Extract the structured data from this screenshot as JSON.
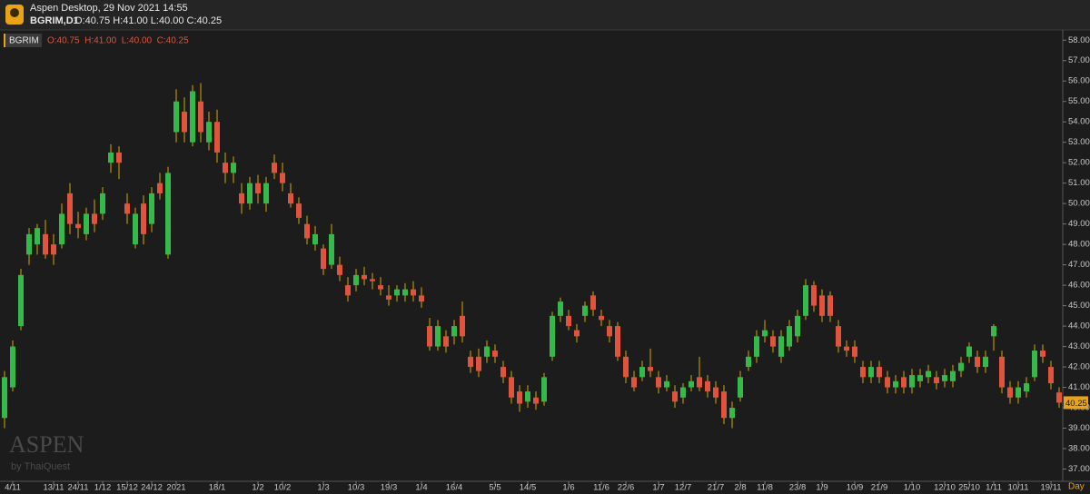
{
  "header": {
    "app": "Aspen Desktop, 29 Nov 2021 14:55",
    "symbol": "BGRIM,D1",
    "ohlc": "O:40.75 H:41.00 L:40.00 C:40.25"
  },
  "watermark": {
    "brand": "ASPEN",
    "by": "by ThaiQuest"
  },
  "chart_data": {
    "type": "candlestick",
    "name": "BGRIM",
    "legend_ohlc": "O:40.75  H:41.00  L:40.00  C:40.25",
    "x_unit": "Day",
    "up_color": "#35b94a",
    "down_color": "#e0533d",
    "wick_color": "#d4a900",
    "categories": [
      null,
      "4/11",
      null,
      null,
      null,
      null,
      "13/11",
      null,
      null,
      "24/11",
      null,
      null,
      "1/12",
      null,
      null,
      "15/12",
      null,
      null,
      "24/12",
      null,
      null,
      "2021",
      null,
      null,
      null,
      null,
      "18/1",
      null,
      null,
      null,
      null,
      "1/2",
      null,
      null,
      "10/2",
      null,
      null,
      null,
      null,
      "1/3",
      null,
      null,
      null,
      "10/3",
      null,
      null,
      null,
      "19/3",
      null,
      null,
      null,
      "1/4",
      null,
      null,
      null,
      "16/4",
      null,
      null,
      null,
      null,
      "5/5",
      null,
      null,
      null,
      "14/5",
      null,
      null,
      null,
      null,
      "1/6",
      null,
      null,
      null,
      "11/6",
      null,
      null,
      "22/6",
      null,
      null,
      null,
      "1/7",
      null,
      null,
      "12/7",
      null,
      null,
      null,
      "21/7",
      null,
      null,
      "2/8",
      null,
      null,
      "11/8",
      null,
      null,
      null,
      "23/8",
      null,
      null,
      "1/9",
      null,
      null,
      null,
      "10/9",
      null,
      null,
      "21/9",
      null,
      null,
      null,
      "1/10",
      null,
      null,
      null,
      "12/10",
      null,
      null,
      "25/10",
      null,
      null,
      "1/11",
      null,
      null,
      "10/11",
      null,
      null,
      null,
      "19/11",
      null
    ],
    "ohlc": [
      [
        39.5,
        41.8,
        39,
        41.5
      ],
      [
        41,
        43.3,
        40.8,
        43
      ],
      [
        44,
        46.8,
        43.8,
        46.5
      ],
      [
        47.5,
        48.8,
        47,
        48.5
      ],
      [
        48,
        49,
        47.5,
        48.8
      ],
      [
        48.5,
        49.2,
        47.3,
        47.5
      ],
      [
        48,
        48.5,
        47,
        47.5
      ],
      [
        48,
        50,
        47.8,
        49.5
      ],
      [
        50.5,
        51,
        48.5,
        49
      ],
      [
        49,
        49.6,
        48.3,
        48.8
      ],
      [
        48.5,
        49.8,
        48.2,
        49.5
      ],
      [
        49.5,
        50.2,
        48.6,
        49
      ],
      [
        49.5,
        50.8,
        49.2,
        50.5
      ],
      [
        52,
        52.9,
        51.5,
        52.5
      ],
      [
        52.5,
        52.8,
        51.2,
        52
      ],
      [
        50,
        50.5,
        49,
        49.5
      ],
      [
        48,
        49.8,
        47.8,
        49.5
      ],
      [
        50,
        50.4,
        48,
        48.5
      ],
      [
        49,
        50.8,
        48.6,
        50.5
      ],
      [
        51,
        51.5,
        50.2,
        50.5
      ],
      [
        47.5,
        51.8,
        47.3,
        51.5
      ],
      [
        53.5,
        55.6,
        53,
        55
      ],
      [
        54.5,
        55.2,
        53,
        53.5
      ],
      [
        53,
        55.8,
        52.8,
        55.5
      ],
      [
        55,
        55.9,
        53,
        53.5
      ],
      [
        53,
        54.5,
        52.6,
        54
      ],
      [
        54,
        54.6,
        52,
        52.5
      ],
      [
        52,
        52.5,
        51,
        51.5
      ],
      [
        51.5,
        52.3,
        51,
        52
      ],
      [
        50.5,
        51,
        49.5,
        50
      ],
      [
        50,
        51.3,
        49.7,
        51
      ],
      [
        51,
        51.4,
        50,
        50.5
      ],
      [
        50,
        51.3,
        49.6,
        51
      ],
      [
        52,
        52.4,
        51.2,
        51.5
      ],
      [
        51.5,
        52,
        50.6,
        51
      ],
      [
        50.5,
        51,
        49.8,
        50
      ],
      [
        50,
        50.3,
        49,
        49.3
      ],
      [
        49,
        49.4,
        48,
        48.3
      ],
      [
        48,
        48.9,
        47.7,
        48.5
      ],
      [
        47.8,
        48,
        46.5,
        46.8
      ],
      [
        47,
        49,
        46.8,
        48.5
      ],
      [
        47,
        47.4,
        46.2,
        46.5
      ],
      [
        46,
        46.4,
        45.2,
        45.5
      ],
      [
        46,
        46.8,
        45.7,
        46.5
      ],
      [
        46.5,
        46.9,
        46,
        46.3
      ],
      [
        46.3,
        46.6,
        45.8,
        46.2
      ],
      [
        46,
        46.4,
        45.5,
        45.8
      ],
      [
        45.5,
        46,
        45,
        45.3
      ],
      [
        45.5,
        46,
        45.2,
        45.8
      ],
      [
        45.5,
        46.1,
        45.2,
        45.8
      ],
      [
        45.8,
        46.2,
        45.2,
        45.5
      ],
      [
        45.5,
        45.9,
        44.9,
        45.2
      ],
      [
        44,
        44.4,
        42.8,
        43
      ],
      [
        43,
        44.3,
        42.8,
        44
      ],
      [
        43.5,
        43.8,
        42.7,
        43
      ],
      [
        43.5,
        44.3,
        43.1,
        44
      ],
      [
        44.5,
        45.2,
        43.2,
        43.5
      ],
      [
        42.5,
        42.8,
        41.7,
        42
      ],
      [
        42.5,
        42.9,
        41.5,
        41.8
      ],
      [
        42.5,
        43.3,
        42.2,
        43
      ],
      [
        42.8,
        43.1,
        42.2,
        42.5
      ],
      [
        42,
        42.3,
        41.2,
        41.5
      ],
      [
        41.5,
        41.8,
        40.2,
        40.5
      ],
      [
        40.8,
        41.1,
        39.8,
        40.2
      ],
      [
        40.3,
        41.1,
        40,
        40.8
      ],
      [
        40.5,
        40.8,
        39.9,
        40.2
      ],
      [
        40.3,
        41.7,
        40.1,
        41.5
      ],
      [
        42.5,
        44.7,
        42.3,
        44.5
      ],
      [
        44.5,
        45.4,
        44.2,
        45.2
      ],
      [
        44.5,
        44.8,
        43.8,
        44
      ],
      [
        43.8,
        44.1,
        43.2,
        43.5
      ],
      [
        44.5,
        45.2,
        44.2,
        45
      ],
      [
        45.5,
        45.7,
        44.5,
        44.8
      ],
      [
        44.5,
        44.8,
        44,
        44.3
      ],
      [
        44,
        44.3,
        43.2,
        43.5
      ],
      [
        44,
        44.2,
        42.3,
        42.5
      ],
      [
        42.5,
        42.8,
        41.2,
        41.5
      ],
      [
        41.5,
        41.8,
        40.8,
        41
      ],
      [
        41.5,
        42.3,
        41.3,
        42
      ],
      [
        42,
        42.9,
        41.5,
        41.8
      ],
      [
        41.5,
        41.8,
        40.7,
        41
      ],
      [
        41,
        41.6,
        40.8,
        41.3
      ],
      [
        40.8,
        41.1,
        40,
        40.3
      ],
      [
        40.5,
        41.2,
        40.2,
        41
      ],
      [
        41,
        41.6,
        40.8,
        41.3
      ],
      [
        41.5,
        42.5,
        40.8,
        41
      ],
      [
        41.3,
        41.6,
        40.5,
        40.8
      ],
      [
        41,
        41.3,
        40.2,
        40.5
      ],
      [
        40.8,
        41.1,
        39.2,
        39.5
      ],
      [
        39.5,
        40.3,
        39,
        40
      ],
      [
        40.5,
        41.8,
        40.3,
        41.5
      ],
      [
        42,
        42.8,
        41.8,
        42.5
      ],
      [
        42.5,
        43.8,
        42.2,
        43.5
      ],
      [
        43.5,
        44.3,
        43.2,
        43.8
      ],
      [
        43.5,
        43.8,
        42.7,
        43
      ],
      [
        42.5,
        43.8,
        42.2,
        43.5
      ],
      [
        43,
        44.3,
        42.8,
        44
      ],
      [
        43.5,
        44.8,
        43.2,
        44.5
      ],
      [
        44.5,
        46.3,
        44.3,
        46
      ],
      [
        46,
        46.2,
        44.7,
        45
      ],
      [
        45.5,
        45.8,
        44.2,
        44.5
      ],
      [
        45.5,
        45.7,
        44.2,
        44.5
      ],
      [
        44,
        44.3,
        42.7,
        43
      ],
      [
        43,
        43.3,
        42.5,
        42.8
      ],
      [
        43,
        43.3,
        42.2,
        42.5
      ],
      [
        42,
        42.3,
        41.2,
        41.5
      ],
      [
        41.5,
        42.3,
        41.2,
        42
      ],
      [
        42,
        42.3,
        41.2,
        41.5
      ],
      [
        41.5,
        41.8,
        40.7,
        41
      ],
      [
        41,
        41.6,
        40.7,
        41.3
      ],
      [
        41.5,
        41.8,
        40.7,
        41
      ],
      [
        41,
        41.9,
        40.7,
        41.6
      ],
      [
        41.3,
        41.9,
        41,
        41.6
      ],
      [
        41.5,
        42.1,
        41.2,
        41.8
      ],
      [
        41.5,
        41.8,
        40.9,
        41.2
      ],
      [
        41.3,
        41.9,
        41,
        41.6
      ],
      [
        41.3,
        42.1,
        41,
        41.8
      ],
      [
        41.8,
        42.5,
        41.5,
        42.2
      ],
      [
        42.5,
        43.2,
        42.2,
        43
      ],
      [
        42.5,
        42.8,
        41.7,
        42
      ],
      [
        42,
        42.8,
        41.7,
        42.5
      ],
      [
        43.5,
        44.1,
        42.8,
        44
      ],
      [
        42.5,
        42.8,
        40.7,
        41
      ],
      [
        41,
        41.3,
        40.2,
        40.5
      ],
      [
        40.5,
        41.3,
        40.2,
        41
      ],
      [
        40.8,
        41.5,
        40.5,
        41.2
      ],
      [
        41.5,
        43.1,
        41.3,
        42.8
      ],
      [
        42.8,
        43.1,
        42.2,
        42.5
      ],
      [
        42,
        42.3,
        40.9,
        41.2
      ],
      [
        40.75,
        41,
        40,
        40.25
      ]
    ],
    "ylim": [
      36.4,
      58.5
    ],
    "yticks": [
      {
        "value": 37,
        "label": "37.00"
      },
      {
        "value": 38,
        "label": "38.00"
      },
      {
        "value": 39,
        "label": "39.00"
      },
      {
        "value": 40,
        "label": "40.00"
      },
      {
        "value": 41,
        "label": "41.00"
      },
      {
        "value": 42,
        "label": "42.00"
      },
      {
        "value": 43,
        "label": "43.00"
      },
      {
        "value": 44,
        "label": "44.00"
      },
      {
        "value": 45,
        "label": "45.00"
      },
      {
        "value": 46,
        "label": "46.00"
      },
      {
        "value": 47,
        "label": "47.00"
      },
      {
        "value": 48,
        "label": "48.00"
      },
      {
        "value": 49,
        "label": "49.00"
      },
      {
        "value": 50,
        "label": "50.00"
      },
      {
        "value": 51,
        "label": "51.00"
      },
      {
        "value": 52,
        "label": "52.00"
      },
      {
        "value": 53,
        "label": "53.00"
      },
      {
        "value": 54,
        "label": "54.00"
      },
      {
        "value": 55,
        "label": "55.00"
      },
      {
        "value": 56,
        "label": "56.00"
      },
      {
        "value": 57,
        "label": "57.00"
      },
      {
        "value": 58,
        "label": "58.00"
      }
    ],
    "grid": false
  }
}
